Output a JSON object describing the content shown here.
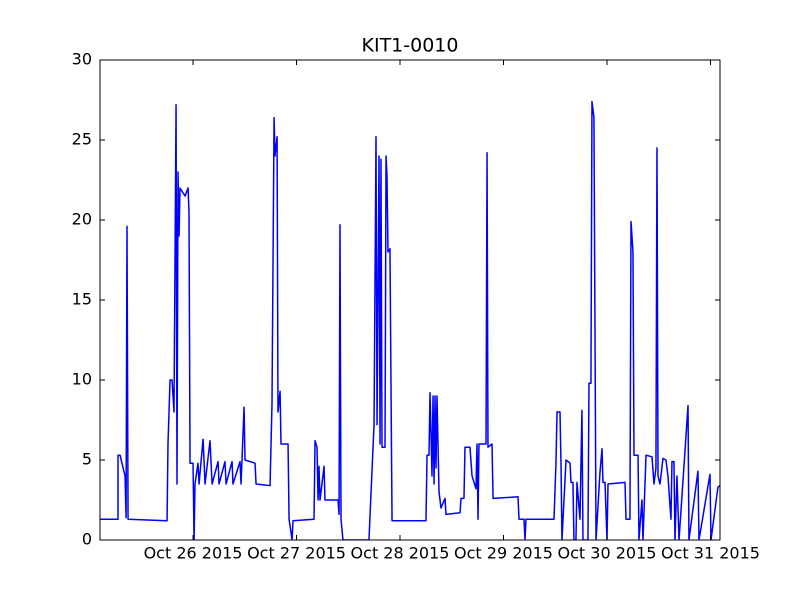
{
  "chart_data": {
    "type": "line",
    "title": "KIT1-0010",
    "x": [
      -0.899,
      -0.725,
      -0.725,
      -0.705,
      -0.657,
      -0.647,
      -0.638,
      -0.628,
      -0.251,
      -0.242,
      -0.222,
      -0.203,
      -0.184,
      -0.164,
      -0.155,
      -0.145,
      -0.135,
      -0.126,
      -0.077,
      -0.048,
      -0.039,
      -0.029,
      0,
      0.01,
      0.019,
      0.048,
      0.058,
      0.097,
      0.116,
      0.164,
      0.184,
      0.242,
      0.251,
      0.309,
      0.319,
      0.377,
      0.386,
      0.454,
      0.464,
      0.493,
      0.502,
      0.599,
      0.609,
      0.744,
      0.763,
      0.783,
      0.792,
      0.812,
      0.821,
      0.841,
      0.85,
      0.918,
      0.928,
      0.957,
      0.966,
      1.169,
      1.179,
      1.198,
      1.208,
      1.217,
      1.227,
      1.266,
      1.275,
      1.401,
      1.411,
      1.42,
      1.43,
      1.449,
      1.7,
      1.749,
      1.768,
      1.778,
      1.797,
      1.807,
      1.816,
      1.826,
      1.855,
      1.865,
      1.874,
      1.884,
      1.903,
      1.923,
      2.251,
      2.261,
      2.28,
      2.29,
      2.309,
      2.319,
      2.329,
      2.338,
      2.348,
      2.357,
      2.377,
      2.396,
      2.435,
      2.444,
      2.58,
      2.589,
      2.618,
      2.628,
      2.676,
      2.696,
      2.734,
      2.744,
      2.754,
      2.763,
      2.831,
      2.841,
      2.85,
      2.889,
      2.899,
      3.14,
      3.15,
      3.198,
      3.208,
      3.217,
      3.488,
      3.507,
      3.517,
      3.546,
      3.556,
      3.565,
      3.604,
      3.643,
      3.652,
      3.671,
      3.681,
      3.7,
      3.71,
      3.739,
      3.758,
      3.768,
      3.816,
      3.826,
      3.845,
      3.855,
      3.874,
      3.894,
      3.932,
      3.952,
      3.961,
      3.981,
      4,
      4.01,
      4.174,
      4.184,
      4.222,
      4.232,
      4.251,
      4.261,
      4.3,
      4.309,
      4.338,
      4.348,
      4.377,
      4.435,
      4.454,
      4.473,
      4.483,
      4.493,
      4.512,
      4.541,
      4.57,
      4.589,
      4.618,
      4.628,
      4.647,
      4.657,
      4.676,
      4.696,
      4.783,
      4.792,
      4.879,
      4.889,
      4.995,
      5.005,
      5.072,
      5.092
    ],
    "series": [
      {
        "color": "#0000ff",
        "values": [
          1.3,
          1.3,
          5.3,
          5.3,
          4,
          1.4,
          19.6,
          1.3,
          1.2,
          6,
          10,
          10,
          8,
          27.2,
          3.5,
          23,
          19,
          22,
          21.5,
          22,
          20.5,
          4.8,
          4.8,
          0,
          3.5,
          4.8,
          3.5,
          6.3,
          3.5,
          6.2,
          3.5,
          4.9,
          3.5,
          4.9,
          3.5,
          4.9,
          3.5,
          4.9,
          3.5,
          8.3,
          5,
          4.8,
          3.5,
          3.4,
          8.5,
          26.4,
          24,
          25.2,
          8,
          9.3,
          6,
          6,
          1.3,
          0,
          1.2,
          1.3,
          6.2,
          5.8,
          2.5,
          4.6,
          2.5,
          4.6,
          2.5,
          2.5,
          1.6,
          19.7,
          1.3,
          0,
          0,
          7.2,
          25.2,
          7.2,
          24,
          6,
          23.8,
          5.8,
          5.8,
          24,
          22.8,
          18,
          18.2,
          1.2,
          1.2,
          5.3,
          5.3,
          9.2,
          4,
          9,
          3.5,
          9,
          4.5,
          9,
          3,
          2,
          2.6,
          1.6,
          1.7,
          2.6,
          2.6,
          5.8,
          5.8,
          4,
          3.2,
          6,
          1.3,
          6,
          6,
          24.2,
          5.8,
          6,
          2.6,
          2.7,
          1.3,
          1.3,
          0,
          1.3,
          1.3,
          4.8,
          8,
          8,
          4.6,
          0,
          5,
          4.8,
          3.6,
          3.6,
          0,
          0,
          3.6,
          1.3,
          8.1,
          0,
          0,
          9.8,
          9.8,
          27.4,
          26.4,
          0,
          4.2,
          5.7,
          3.6,
          3.6,
          0,
          3.5,
          3.6,
          1.3,
          1.3,
          19.9,
          18,
          5.3,
          5.3,
          0,
          2.5,
          0,
          5.3,
          5.2,
          3.5,
          4.5,
          24.5,
          4,
          3.5,
          5.1,
          5,
          4,
          1.3,
          4.9,
          4.9,
          0,
          4,
          0,
          8.4,
          0,
          4.3,
          0,
          4.1,
          0,
          3.3,
          3.4
        ]
      }
    ],
    "xlim": [
      -0.899,
      5.092
    ],
    "xticks": [
      {
        "value": 0,
        "label": "Oct 26 2015"
      },
      {
        "value": 1,
        "label": "Oct 27 2015"
      },
      {
        "value": 2,
        "label": "Oct 28 2015"
      },
      {
        "value": 3,
        "label": "Oct 29 2015"
      },
      {
        "value": 4,
        "label": "Oct 30 2015"
      },
      {
        "value": 5,
        "label": "Oct 31 2015"
      }
    ],
    "ylim": [
      0,
      30
    ],
    "yticks": [
      0,
      5,
      10,
      15,
      20,
      25,
      30
    ]
  }
}
